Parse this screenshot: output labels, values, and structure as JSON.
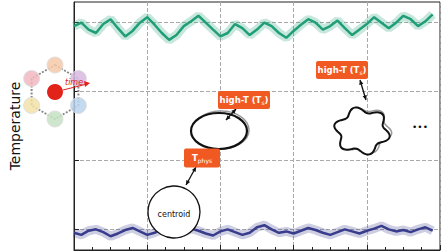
{
  "chart_data": {
    "type": "line",
    "y_label": "Temperature",
    "x": [
      0,
      2,
      4,
      6,
      8,
      10,
      12,
      14,
      16,
      18,
      20,
      22,
      24,
      26,
      28,
      30,
      32,
      34,
      36,
      38,
      40,
      42,
      44,
      46,
      48,
      50,
      52,
      54,
      56,
      58,
      60,
      62,
      64,
      66,
      68,
      70,
      72,
      74,
      76,
      78,
      80,
      82,
      84,
      86,
      88,
      90,
      92,
      94,
      96,
      98
    ],
    "series": [
      {
        "color": "#1f9e78",
        "values": [
          3.25,
          3.3,
          3.2,
          3.15,
          3.28,
          3.35,
          3.22,
          3.1,
          3.18,
          3.3,
          3.38,
          3.27,
          3.15,
          3.05,
          3.12,
          3.25,
          3.32,
          3.4,
          3.3,
          3.2,
          3.1,
          3.15,
          3.28,
          3.22,
          3.12,
          3.2,
          3.3,
          3.25,
          3.15,
          3.08,
          3.18,
          3.27,
          3.35,
          3.3,
          3.2,
          3.25,
          3.33,
          3.22,
          3.12,
          3.2,
          3.28,
          3.38,
          3.3,
          3.22,
          3.3,
          3.4,
          3.35,
          3.25,
          3.32,
          3.42
        ]
      },
      {
        "color": "#383c8c",
        "values": [
          0.25,
          0.22,
          0.28,
          0.3,
          0.26,
          0.2,
          0.24,
          0.29,
          0.32,
          0.27,
          0.22,
          0.25,
          0.3,
          0.28,
          0.23,
          0.26,
          0.31,
          0.28,
          0.24,
          0.21,
          0.27,
          0.3,
          0.26,
          0.22,
          0.25,
          0.33,
          0.36,
          0.3,
          0.25,
          0.27,
          0.24,
          0.28,
          0.32,
          0.29,
          0.25,
          0.22,
          0.26,
          0.3,
          0.27,
          0.24,
          0.28,
          0.31,
          0.35,
          0.3,
          0.27,
          0.29,
          0.26,
          0.3,
          0.33,
          0.28
        ]
      }
    ],
    "xlim": [
      0,
      100
    ],
    "xticks": [
      0,
      20,
      40,
      60,
      80,
      100
    ],
    "ylim": [
      0,
      3.6
    ],
    "yticks": [
      0.3,
      1.3,
      2.3,
      3.3
    ],
    "grid": true,
    "tick_labels": false,
    "annotations": [
      {
        "parts": [
          {
            "text": "high-T (T"
          },
          {
            "text": "s",
            "sub": true
          },
          {
            "text": ")"
          }
        ]
      },
      {
        "parts": [
          {
            "text": "high-T (T"
          },
          {
            "text": "s",
            "sub": true
          },
          {
            "text": ")"
          }
        ]
      },
      {
        "parts": [
          {
            "text": "T"
          },
          {
            "text": "phys",
            "sub": true
          }
        ]
      }
    ],
    "diagram_labels": {
      "time": "time",
      "centroid": "centroid",
      "more": "•••"
    }
  }
}
